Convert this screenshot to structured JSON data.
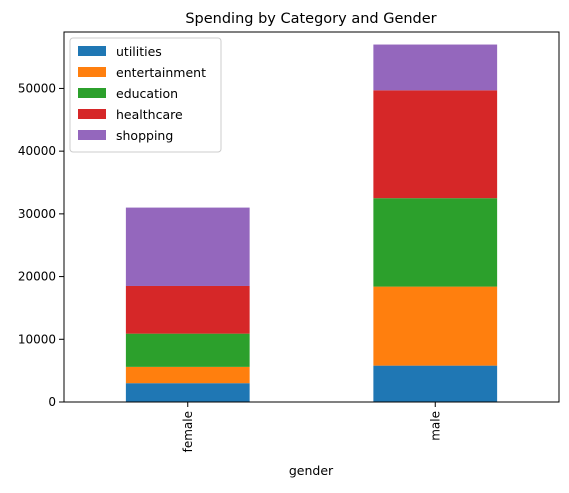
{
  "chart_data": {
    "type": "bar",
    "stacked": true,
    "title": "Spending by Category and Gender",
    "xlabel": "gender",
    "ylabel": "",
    "categories": [
      "female",
      "male"
    ],
    "ylim": [
      0,
      59000
    ],
    "yticks": [
      0,
      10000,
      20000,
      30000,
      40000,
      50000
    ],
    "grid": false,
    "legend_position": "upper-left",
    "series": [
      {
        "name": "utilities",
        "color": "#1f77b4",
        "values": [
          3000,
          5800
        ]
      },
      {
        "name": "entertainment",
        "color": "#ff7f0e",
        "values": [
          2600,
          12600
        ]
      },
      {
        "name": "education",
        "color": "#2ca02c",
        "values": [
          5300,
          14100
        ]
      },
      {
        "name": "healthcare",
        "color": "#d62728",
        "values": [
          7600,
          17200
        ]
      },
      {
        "name": "shopping",
        "color": "#9467bd",
        "values": [
          12500,
          7300
        ]
      }
    ]
  }
}
